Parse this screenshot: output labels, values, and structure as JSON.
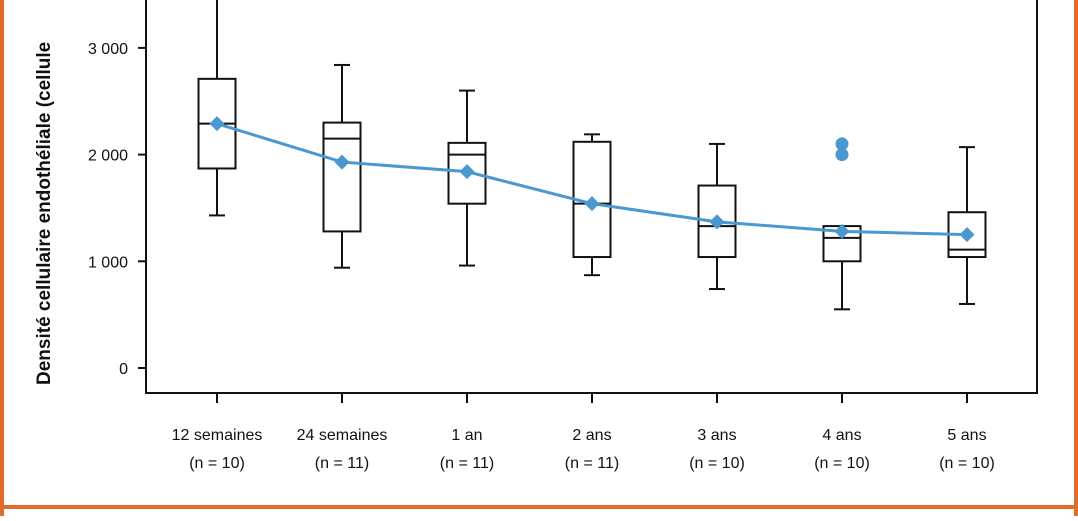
{
  "colors": {
    "border": "#e06c2b",
    "mean": "#4b97d0",
    "ink": "#111111",
    "background": "#ffffff"
  },
  "chart_data": {
    "type": "box",
    "ylabel": "Densité cellulaire endothéliale (cellule",
    "ylim": [
      -200,
      3450
    ],
    "yticks": [
      0,
      1000,
      2000,
      3000
    ],
    "ytick_labels": [
      "0",
      "1 000",
      "2 000",
      "3 000"
    ],
    "grid": false,
    "legend": "none",
    "categories": [
      {
        "label": "12 semaines",
        "n": "(n = 10)"
      },
      {
        "label": "24 semaines",
        "n": "(n = 11)"
      },
      {
        "label": "1 an",
        "n": "(n = 11)"
      },
      {
        "label": "2 ans",
        "n": "(n = 11)"
      },
      {
        "label": "3 ans",
        "n": "(n = 10)"
      },
      {
        "label": "4 ans",
        "n": "(n = 10)"
      },
      {
        "label": "5 ans",
        "n": "(n = 10)"
      }
    ],
    "boxes": [
      {
        "whisker_low": 1430,
        "q1": 1870,
        "median": 2290,
        "q3": 2710,
        "whisker_high": 3450,
        "outliers": []
      },
      {
        "whisker_low": 940,
        "q1": 1280,
        "median": 2150,
        "q3": 2300,
        "whisker_high": 2840,
        "outliers": []
      },
      {
        "whisker_low": 960,
        "q1": 1540,
        "median": 2000,
        "q3": 2110,
        "whisker_high": 2600,
        "outliers": []
      },
      {
        "whisker_low": 870,
        "q1": 1040,
        "median": 1540,
        "q3": 2120,
        "whisker_high": 2190,
        "outliers": []
      },
      {
        "whisker_low": 740,
        "q1": 1040,
        "median": 1330,
        "q3": 1710,
        "whisker_high": 2100,
        "outliers": []
      },
      {
        "whisker_low": 550,
        "q1": 1000,
        "median": 1220,
        "q3": 1330,
        "whisker_high": 1330,
        "outliers": [
          2000,
          2100
        ]
      },
      {
        "whisker_low": 600,
        "q1": 1040,
        "median": 1110,
        "q3": 1460,
        "whisker_high": 2070,
        "outliers": []
      }
    ],
    "mean_series": [
      2290,
      1930,
      1840,
      1540,
      1370,
      1280,
      1250
    ]
  }
}
